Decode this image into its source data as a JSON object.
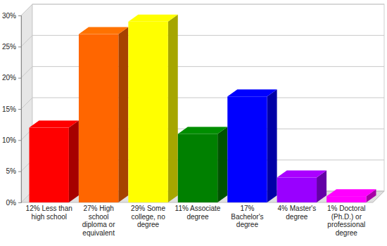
{
  "chart_data": {
    "type": "bar",
    "categories": [
      "12% Less than high school",
      "27% High school diploma or equivalent",
      "29% Some college, no degree",
      "11% Associate degree",
      "17% Bachelor's degree",
      "4% Master's degree",
      "1% Doctoral (Ph.D.) or professional degree"
    ],
    "values": [
      12,
      27,
      29,
      11,
      17,
      4,
      1
    ],
    "colors": [
      "#ff0000",
      "#ff6600",
      "#ffff00",
      "#008000",
      "#0000ff",
      "#9900ff",
      "#ff00ff"
    ],
    "ylim": [
      0,
      30
    ],
    "yticks": [
      {
        "value": 0,
        "label": "0%"
      },
      {
        "value": 5,
        "label": "5%"
      },
      {
        "value": 10,
        "label": "10%"
      },
      {
        "value": 15,
        "label": "15%"
      },
      {
        "value": 20,
        "label": "20%"
      },
      {
        "value": 25,
        "label": "25%"
      },
      {
        "value": 30,
        "label": "30%"
      }
    ],
    "grid": true
  }
}
